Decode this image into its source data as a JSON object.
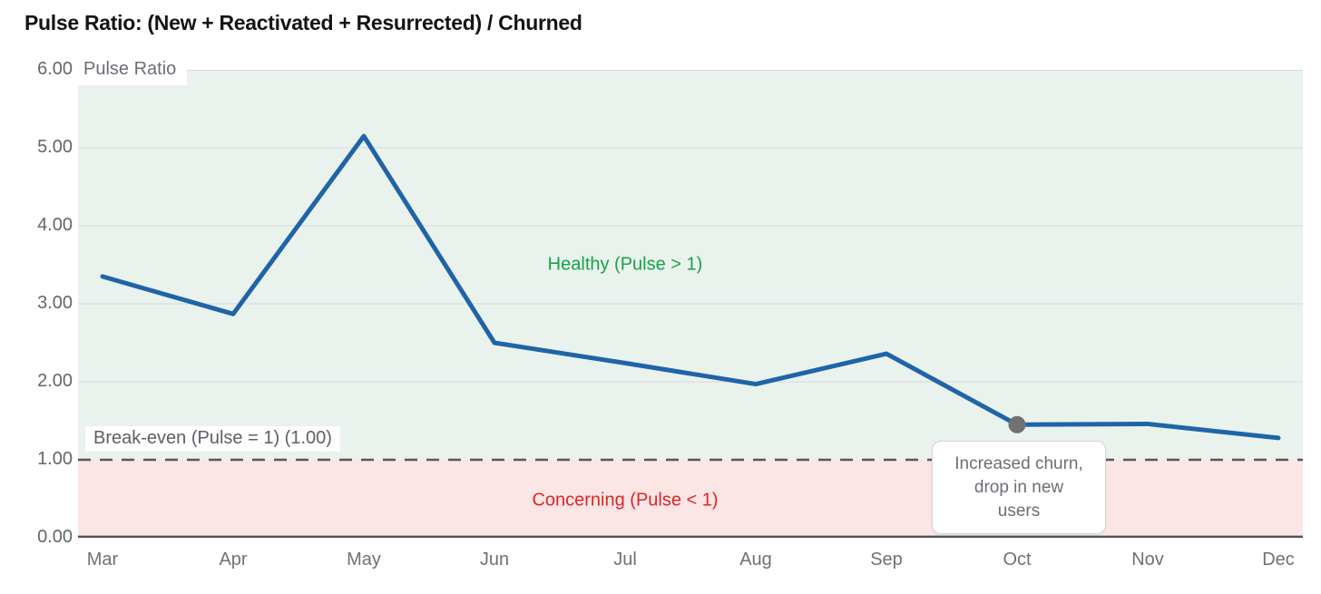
{
  "title": "Pulse Ratio: (New + Reactivated + Resurrected) / Churned",
  "chart_data": {
    "type": "line",
    "title": "Pulse Ratio: (New + Reactivated + Resurrected) / Churned",
    "y_axis_label": "Pulse Ratio",
    "xlabel": "",
    "ylabel": "Pulse Ratio",
    "categories": [
      "Mar",
      "Apr",
      "May",
      "Jun",
      "Jul",
      "Aug",
      "Sep",
      "Oct",
      "Nov",
      "Dec"
    ],
    "series": [
      {
        "name": "Pulse Ratio",
        "values": [
          3.35,
          2.87,
          5.15,
          2.5,
          2.24,
          1.97,
          2.36,
          1.45,
          1.46,
          1.28
        ],
        "color": "#2064a8"
      }
    ],
    "ylim": [
      0,
      6
    ],
    "y_ticks": [
      6,
      5,
      4,
      3,
      2,
      1,
      0
    ],
    "grid": true,
    "legend_position": "none",
    "colors": {
      "line": "#2064a8",
      "gridline": "#d8dadb",
      "dashed_reference": "#55585c",
      "x_axis_line": "#505358",
      "healthy_zone_fill": "#e9f2ec",
      "concerning_zone_fill": "#fbe5e5",
      "healthy_text": "#16a34a",
      "concerning_text": "#dc2626",
      "marker_dot": "#717171"
    },
    "zones": [
      {
        "label": "Healthy (Pulse > 1)",
        "range": [
          1,
          6
        ],
        "fill": "#e9f2ec",
        "label_anchor": {
          "category_center": "Jul",
          "value": 3.5
        }
      },
      {
        "label": "Concerning (Pulse < 1)",
        "range": [
          0,
          1
        ],
        "fill": "#fbe5e5",
        "label_anchor": {
          "category_center": "Jul",
          "value": 0.48
        }
      }
    ],
    "reference_line": {
      "label": "Break-even (Pulse = 1) (1.00)",
      "value": 1.0,
      "style": "dashed"
    },
    "annotation": {
      "text": "Increased churn, drop in new users",
      "category": "Oct",
      "value": 1.45
    }
  }
}
